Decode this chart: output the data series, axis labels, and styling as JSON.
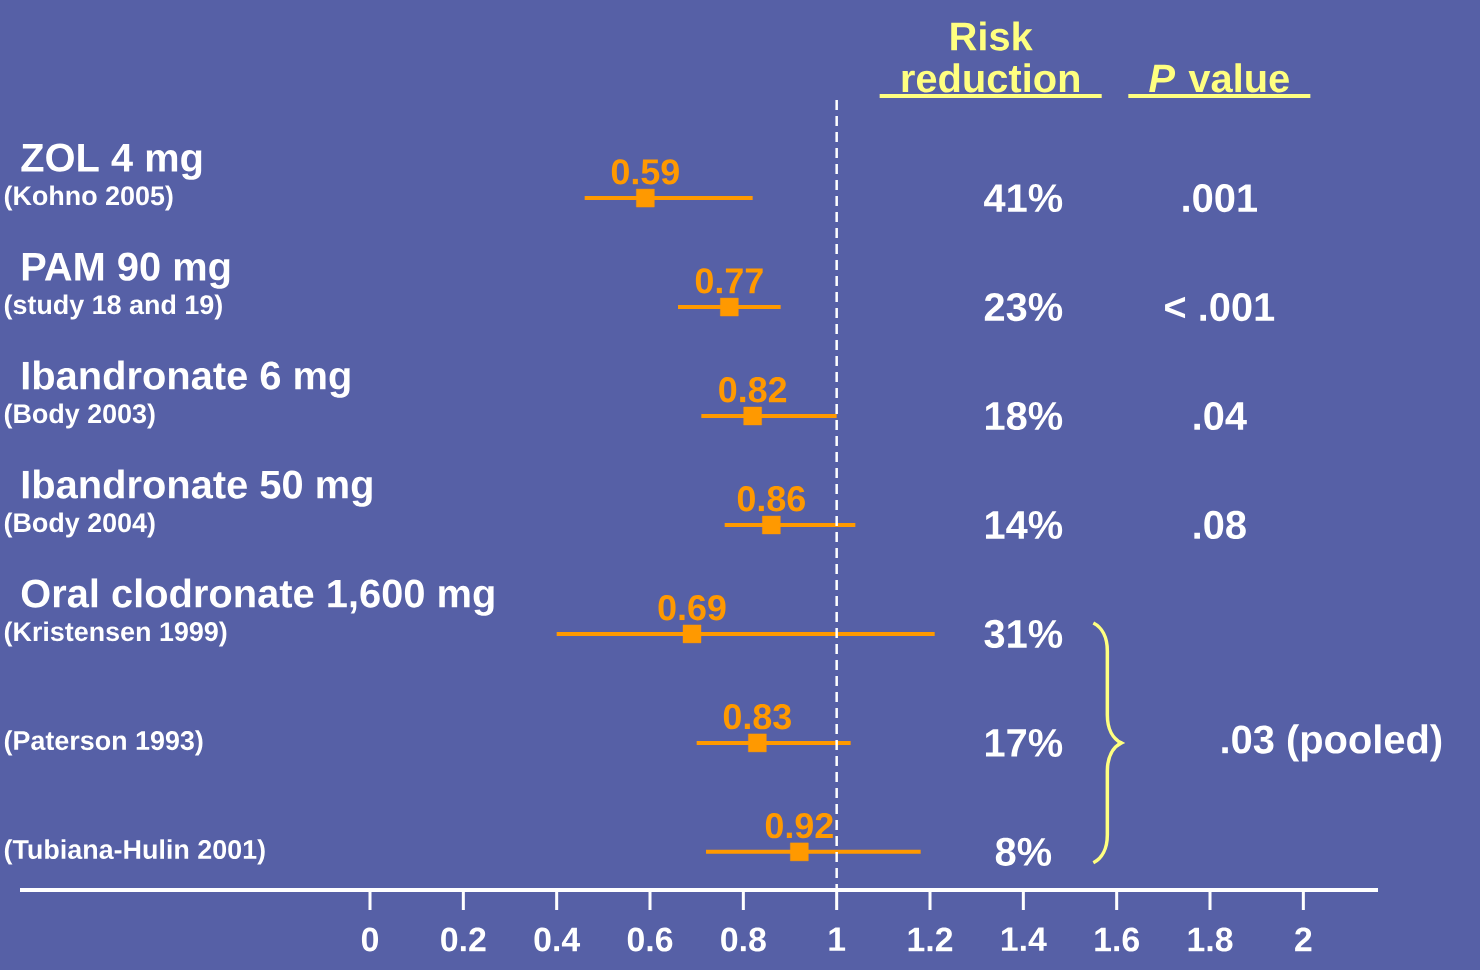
{
  "chart_data": {
    "type": "scatter",
    "orientation": "horizontal",
    "categories": [
      "(Kohno 2005)",
      "(study 18 and 19)",
      "(Body 2003)",
      "(Body 2004)",
      "(Kristensen 1999)",
      "(Paterson 1993)",
      "(Tubiana-Hulin 2001)"
    ],
    "values": [
      0.59,
      0.77,
      0.82,
      0.86,
      0.69,
      0.83,
      0.92
    ],
    "errors": [
      [
        0.46,
        0.82
      ],
      [
        0.66,
        0.88
      ],
      [
        0.71,
        1.0
      ],
      [
        0.76,
        1.04
      ],
      [
        0.4,
        1.21
      ],
      [
        0.7,
        1.03
      ],
      [
        0.72,
        1.18
      ]
    ],
    "color": "#ff9900",
    "marker": "square",
    "data_labels": true,
    "xlim": [
      -0.75,
      2.16
    ],
    "xticks": [
      0,
      0.2,
      0.4,
      0.6,
      0.8,
      1,
      1.2,
      1.4,
      1.6,
      1.8,
      2
    ],
    "ref_lines": [
      {
        "axis": "x",
        "value": 1,
        "color": "#ffffff",
        "line_style": "dashed"
      }
    ],
    "annotations": [
      "ZOL 4 mg",
      "PAM 90 mg",
      "Ibandronate 6 mg",
      "Ibandronate 50 mg",
      "Oral clodronate 1,600 mg",
      "Risk reduction",
      "*P* value",
      "41%",
      "23%",
      "18%",
      "14%",
      "31%",
      "17%",
      "8%",
      ".001",
      "< .001",
      ".04",
      ".08",
      ".03 (pooled)"
    ]
  }
}
